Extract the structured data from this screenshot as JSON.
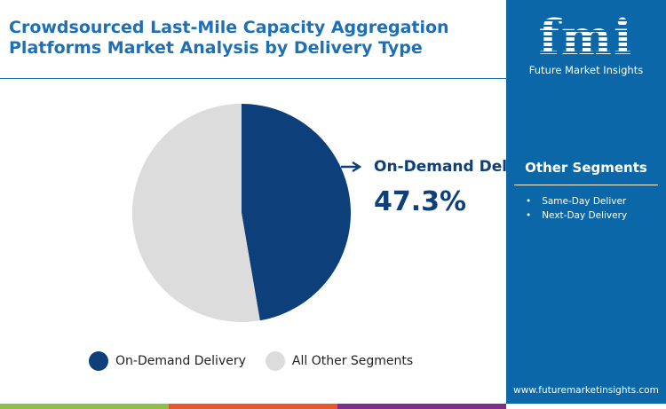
{
  "title": "Crowdsourced Last-Mile Capacity Aggregation Platforms Market Analysis by Delivery Type",
  "brand": {
    "logo_text": "fmi",
    "name": "Future Market Insights",
    "url": "www.futuremarketinsights.com"
  },
  "other_segments": {
    "title": "Other Segments",
    "items": [
      "Same-Day Deliver",
      "Next-Day Delivery"
    ]
  },
  "colors": {
    "primary": "#0d3f7a",
    "other": "#dcdcdc",
    "panel": "#0b67a8",
    "title": "#1f6fb5",
    "bars": [
      "#8cc04b",
      "#e8562a",
      "#7e2d8c"
    ]
  },
  "chart_data": {
    "type": "pie",
    "slices": [
      {
        "label": "On-Demand Delivery",
        "value": 47.3,
        "color": "#0d3f7a"
      },
      {
        "label": "All Other Segments",
        "value": 52.7,
        "color": "#dcdcdc"
      }
    ],
    "callout": {
      "label": "On-Demand Delivery",
      "value": "47.3%"
    },
    "legend": [
      "On-Demand Delivery",
      "All Other Segments"
    ],
    "legend_position": "bottom"
  }
}
